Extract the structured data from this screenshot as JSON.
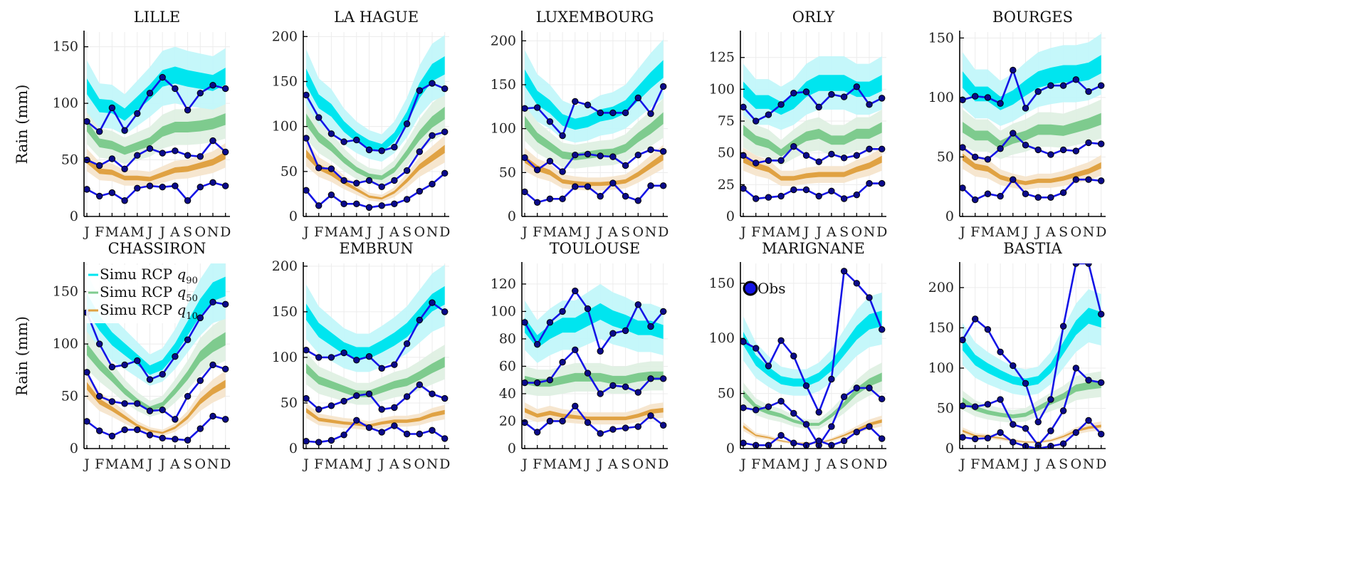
{
  "chart_data": {
    "type": "area",
    "ylabel": "Rain (mm)",
    "months": [
      "J",
      "F",
      "M",
      "A",
      "M",
      "J",
      "J",
      "A",
      "S",
      "O",
      "N",
      "D"
    ],
    "band_style": {
      "inner_rel": 0.06,
      "outer_rel": 0.2
    },
    "colors": {
      "q90": "#00e5ef",
      "q90_light": "#c2f7fa",
      "q50": "#7ecb8e",
      "q50_light": "#dff0e3",
      "q10": "#e0a243",
      "q10_light": "#f6e5cc",
      "obs": "#1414e6",
      "obs_marker": "#0a0a8a"
    },
    "legend": {
      "simu": [
        {
          "label": "Simu RCP ",
          "var": "q",
          "sub": "90",
          "band": "q90"
        },
        {
          "label": "Simu RCP ",
          "var": "q",
          "sub": "50",
          "band": "q50"
        },
        {
          "label": "Simu RCP ",
          "var": "q",
          "sub": "10",
          "band": "q10"
        }
      ],
      "obs": "Obs"
    },
    "panels": [
      {
        "title": "LILLE",
        "ylim": [
          0,
          163
        ],
        "yticks": [
          0,
          50,
          100,
          150
        ],
        "q90": [
          115,
          98,
          97,
          90,
          100,
          110,
          122,
          125,
          122,
          120,
          118,
          124
        ],
        "q50": [
          80,
          65,
          63,
          58,
          62,
          66,
          75,
          79,
          79,
          80,
          82,
          86
        ],
        "q10": [
          50,
          40,
          39,
          34,
          34,
          33,
          37,
          41,
          42,
          45,
          48,
          54
        ],
        "obs": [
          [
            84,
            75,
            96,
            76,
            91,
            109,
            123,
            113,
            94,
            109,
            116,
            113
          ],
          [
            50,
            45,
            51,
            42,
            54,
            60,
            56,
            58,
            54,
            53,
            67,
            57
          ],
          [
            24,
            18,
            21,
            14,
            25,
            27,
            26,
            27,
            14,
            26,
            30,
            27
          ]
        ]
      },
      {
        "title": "LA HAGUE",
        "ylim": [
          0,
          205
        ],
        "yticks": [
          0,
          50,
          100,
          150,
          200
        ],
        "q90": [
          155,
          128,
          118,
          100,
          88,
          80,
          76,
          88,
          110,
          140,
          160,
          168
        ],
        "q50": [
          108,
          88,
          77,
          63,
          52,
          45,
          43,
          52,
          70,
          90,
          105,
          115
        ],
        "q10": [
          70,
          55,
          48,
          38,
          30,
          22,
          20,
          27,
          40,
          55,
          65,
          75
        ],
        "obs": [
          [
            135,
            110,
            92,
            83,
            85,
            74,
            73,
            77,
            103,
            140,
            148,
            142
          ],
          [
            87,
            54,
            53,
            40,
            37,
            40,
            33,
            40,
            51,
            72,
            90,
            94
          ],
          [
            29,
            12,
            24,
            14,
            14,
            10,
            12,
            14,
            19,
            28,
            36,
            48
          ]
        ]
      },
      {
        "title": "LUXEMBOURG",
        "ylim": [
          0,
          210
        ],
        "yticks": [
          0,
          50,
          100,
          150,
          200
        ],
        "q90": [
          158,
          135,
          125,
          110,
          105,
          108,
          115,
          118,
          125,
          140,
          155,
          168
        ],
        "q50": [
          108,
          90,
          80,
          70,
          68,
          70,
          72,
          73,
          78,
          90,
          100,
          112
        ],
        "q10": [
          65,
          55,
          50,
          40,
          38,
          37,
          37,
          38,
          40,
          48,
          58,
          68
        ],
        "obs": [
          [
            123,
            124,
            108,
            92,
            131,
            127,
            118,
            118,
            118,
            135,
            117,
            148
          ],
          [
            67,
            53,
            63,
            51,
            70,
            71,
            69,
            68,
            58,
            70,
            76,
            74
          ],
          [
            28,
            16,
            20,
            20,
            34,
            34,
            23,
            38,
            23,
            18,
            35,
            35
          ]
        ]
      },
      {
        "title": "ORLY",
        "ylim": [
          0,
          145
        ],
        "yticks": [
          0,
          25,
          50,
          75,
          100,
          125
        ],
        "q90": [
          100,
          90,
          90,
          85,
          90,
          100,
          105,
          105,
          105,
          100,
          100,
          105
        ],
        "q50": [
          68,
          60,
          57,
          50,
          57,
          63,
          65,
          60,
          60,
          65,
          65,
          70
        ],
        "q10": [
          45,
          40,
          37,
          30,
          30,
          32,
          33,
          33,
          33,
          37,
          40,
          45
        ],
        "obs": [
          [
            86,
            75,
            80,
            88,
            97,
            98,
            86,
            96,
            94,
            102,
            88,
            93
          ],
          [
            48,
            42,
            44,
            44,
            55,
            48,
            43,
            49,
            46,
            48,
            53,
            53
          ],
          [
            22,
            14,
            15,
            16,
            21,
            21,
            16,
            20,
            14,
            17,
            26,
            26
          ]
        ]
      },
      {
        "title": "BOURGES",
        "ylim": [
          0,
          155
        ],
        "yticks": [
          0,
          50,
          100,
          150
        ],
        "q90": [
          115,
          103,
          103,
          95,
          100,
          108,
          115,
          118,
          120,
          120,
          122,
          128
        ],
        "q50": [
          75,
          68,
          68,
          60,
          65,
          68,
          73,
          73,
          72,
          75,
          78,
          82
        ],
        "q10": [
          50,
          42,
          40,
          33,
          30,
          28,
          30,
          30,
          32,
          35,
          38,
          43
        ],
        "obs": [
          [
            98,
            101,
            100,
            95,
            123,
            91,
            105,
            110,
            110,
            115,
            105,
            110
          ],
          [
            58,
            50,
            48,
            57,
            70,
            60,
            56,
            52,
            56,
            55,
            62,
            61
          ],
          [
            24,
            14,
            19,
            17,
            31,
            19,
            16,
            16,
            20,
            31,
            31,
            30
          ]
        ]
      },
      {
        "title": "CHASSIRON",
        "ylim": [
          0,
          177
        ],
        "yticks": [
          0,
          50,
          100,
          150
        ],
        "legend": "simu",
        "q90": [
          140,
          120,
          105,
          95,
          85,
          75,
          80,
          95,
          115,
          135,
          150,
          155
        ],
        "q50": [
          95,
          80,
          68,
          55,
          45,
          38,
          42,
          55,
          70,
          88,
          98,
          105
        ],
        "q10": [
          60,
          45,
          38,
          30,
          22,
          17,
          15,
          20,
          30,
          45,
          55,
          62
        ],
        "obs": [
          [
            130,
            100,
            78,
            80,
            84,
            66,
            71,
            88,
            104,
            125,
            140,
            138
          ],
          [
            73,
            50,
            45,
            43,
            43,
            36,
            37,
            28,
            50,
            65,
            80,
            76
          ],
          [
            26,
            17,
            12,
            18,
            18,
            13,
            10,
            9,
            8,
            19,
            31,
            28
          ]
        ]
      },
      {
        "title": "EMBRUN",
        "ylim": [
          0,
          203
        ],
        "yticks": [
          0,
          50,
          100,
          150,
          200
        ],
        "q90": [
          150,
          130,
          120,
          110,
          105,
          105,
          112,
          120,
          130,
          145,
          160,
          168
        ],
        "q50": [
          88,
          75,
          70,
          65,
          60,
          60,
          65,
          70,
          73,
          80,
          88,
          95
        ],
        "q10": [
          42,
          32,
          30,
          28,
          27,
          25,
          28,
          30,
          30,
          32,
          37,
          40
        ],
        "obs": [
          [
            108,
            100,
            100,
            105,
            97,
            101,
            88,
            92,
            115,
            141,
            160,
            150
          ],
          [
            55,
            43,
            47,
            52,
            58,
            60,
            43,
            45,
            57,
            70,
            60,
            55
          ],
          [
            8,
            7,
            9,
            15,
            31,
            23,
            18,
            25,
            16,
            16,
            20,
            11
          ]
        ]
      },
      {
        "title": "TOULOUSE",
        "ylim": [
          0,
          135
        ],
        "yticks": [
          0,
          20,
          40,
          60,
          80,
          100,
          120
        ],
        "q90": [
          90,
          78,
          85,
          90,
          90,
          95,
          100,
          95,
          92,
          88,
          88,
          85
        ],
        "q50": [
          50,
          48,
          48,
          50,
          52,
          52,
          52,
          50,
          50,
          52,
          53,
          53
        ],
        "q10": [
          28,
          24,
          26,
          24,
          23,
          22,
          22,
          22,
          22,
          24,
          27,
          28
        ],
        "obs": [
          [
            92,
            76,
            92,
            100,
            115,
            102,
            71,
            84,
            86,
            105,
            89,
            100
          ],
          [
            48,
            48,
            50,
            63,
            72,
            55,
            40,
            46,
            45,
            41,
            51,
            51
          ],
          [
            19,
            12,
            20,
            20,
            31,
            19,
            11,
            14,
            15,
            16,
            24,
            17
          ]
        ]
      },
      {
        "title": "MARIGNANE",
        "ylim": [
          0,
          168
        ],
        "yticks": [
          0,
          50,
          100,
          150
        ],
        "legend": "obs",
        "q90": [
          100,
          80,
          70,
          62,
          60,
          60,
          65,
          75,
          90,
          105,
          115,
          118
        ],
        "q50": [
          50,
          38,
          33,
          30,
          25,
          22,
          22,
          30,
          40,
          52,
          60,
          65
        ],
        "q10": [
          20,
          12,
          10,
          7,
          5,
          5,
          5,
          8,
          12,
          17,
          22,
          25
        ],
        "obs": [
          [
            97,
            91,
            75,
            98,
            84,
            57,
            33,
            63,
            161,
            150,
            137,
            108
          ],
          [
            37,
            35,
            38,
            43,
            32,
            22,
            3,
            20,
            47,
            55,
            55,
            45
          ],
          [
            5,
            3,
            3,
            12,
            5,
            3,
            7,
            3,
            7,
            15,
            20,
            9
          ]
        ]
      },
      {
        "title": "BASTIA",
        "ylim": [
          0,
          230
        ],
        "yticks": [
          0,
          50,
          100,
          150,
          200
        ],
        "q90": [
          130,
          110,
          100,
          92,
          85,
          82,
          85,
          100,
          125,
          150,
          165,
          160
        ],
        "q50": [
          60,
          50,
          45,
          42,
          40,
          42,
          50,
          58,
          65,
          75,
          78,
          80
        ],
        "q10": [
          22,
          16,
          15,
          13,
          10,
          8,
          8,
          10,
          15,
          22,
          26,
          28
        ],
        "obs": [
          [
            135,
            161,
            148,
            120,
            103,
            81,
            33,
            61,
            152,
            230,
            230,
            167
          ],
          [
            53,
            52,
            55,
            61,
            30,
            25,
            4,
            22,
            47,
            100,
            85,
            82
          ],
          [
            14,
            12,
            13,
            20,
            8,
            3,
            0,
            3,
            6,
            20,
            35,
            18
          ]
        ]
      }
    ]
  }
}
